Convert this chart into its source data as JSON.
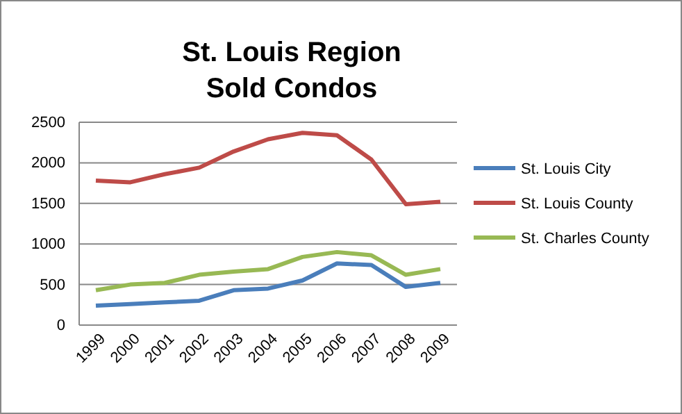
{
  "chart_data": {
    "type": "line",
    "title": "St. Louis Region\nSold Condos",
    "categories": [
      "1999",
      "2000",
      "2001",
      "2002",
      "2003",
      "2004",
      "2005",
      "2006",
      "2007",
      "2008",
      "2009"
    ],
    "series": [
      {
        "name": "St. Louis City",
        "color": "#4a7ebb",
        "values": [
          240,
          260,
          280,
          300,
          430,
          450,
          550,
          760,
          740,
          470,
          520
        ]
      },
      {
        "name": "St. Louis County",
        "color": "#be4b48",
        "values": [
          1780,
          1760,
          1860,
          1940,
          2140,
          2290,
          2370,
          2340,
          2040,
          1490,
          1520
        ]
      },
      {
        "name": "St. Charles County",
        "color": "#98b954",
        "values": [
          430,
          500,
          520,
          620,
          660,
          690,
          840,
          900,
          860,
          620,
          690
        ]
      }
    ],
    "ylim": [
      0,
      2500
    ],
    "yticks": [
      0,
      500,
      1000,
      1500,
      2000,
      2500
    ],
    "grid": "y",
    "legend": "right",
    "marker": "none",
    "line_style": "solid"
  }
}
